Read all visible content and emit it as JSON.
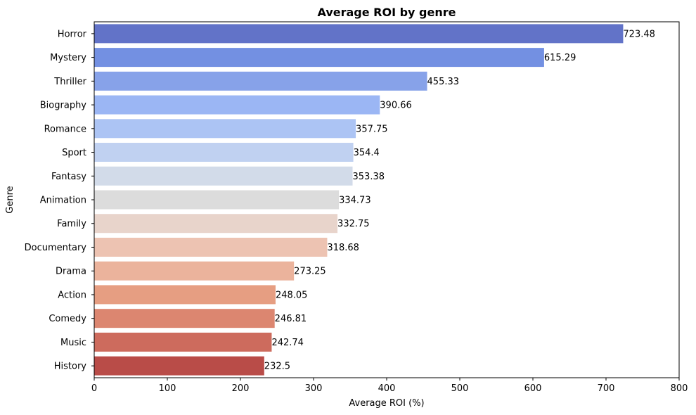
{
  "chart_data": {
    "type": "bar",
    "orientation": "horizontal",
    "title": "Average ROI by genre",
    "xlabel": "Average ROI (%)",
    "ylabel": "Genre",
    "xlim": [
      0,
      800
    ],
    "xticks": [
      0,
      100,
      200,
      300,
      400,
      500,
      600,
      700,
      800
    ],
    "grid": false,
    "categories": [
      "Horror",
      "Mystery",
      "Thriller",
      "Biography",
      "Romance",
      "Sport",
      "Fantasy",
      "Animation",
      "Family",
      "Documentary",
      "Drama",
      "Action",
      "Comedy",
      "Music",
      "History"
    ],
    "values": [
      723.48,
      615.29,
      455.33,
      390.66,
      357.75,
      354.4,
      353.38,
      334.73,
      332.75,
      318.68,
      273.25,
      248.05,
      246.81,
      242.74,
      232.5
    ],
    "value_labels": [
      "723.48",
      "615.29",
      "455.33",
      "390.66",
      "357.75",
      "354.4",
      "353.38",
      "334.73",
      "332.75",
      "318.68",
      "273.25",
      "248.05",
      "246.81",
      "242.74",
      "232.5"
    ],
    "colors": [
      "#6273c8",
      "#7390e2",
      "#87a2e9",
      "#9bb6f4",
      "#acc4f4",
      "#c0d1f1",
      "#d2dbe9",
      "#dcdcdc",
      "#e8d4cb",
      "#edc3b2",
      "#ebb39c",
      "#e69e82",
      "#dc8670",
      "#cd6b5d",
      "#b94c48"
    ]
  }
}
